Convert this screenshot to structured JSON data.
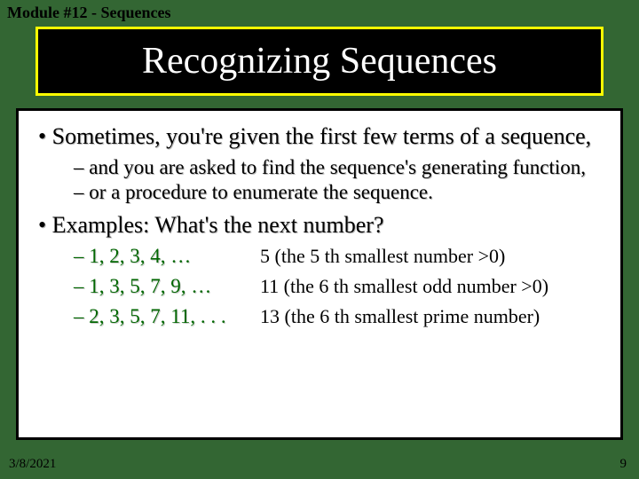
{
  "module_header": "Module #12 - Sequences",
  "title": "Recognizing Sequences",
  "bullets": {
    "main1": "• Sometimes, you're given the first few terms of a sequence,",
    "sub1": "– and you are asked to find the sequence's generating function,",
    "sub2": "– or a procedure to enumerate the sequence.",
    "main2": "• Examples: What's the next number?"
  },
  "examples": [
    {
      "seq": "– 1, 2, 3, 4, …",
      "ans": "5 (the 5 th smallest number >0)"
    },
    {
      "seq": "– 1, 3, 5, 7, 9, …",
      "ans": "11 (the 6 th smallest odd number >0)"
    },
    {
      "seq": "– 2, 3, 5, 7, 11, . . .",
      "ans": "13 (the 6 th smallest prime number)"
    }
  ],
  "footer": {
    "date": "3/8/2021",
    "page": "9"
  },
  "colors": {
    "slide_bg": "#336633",
    "title_border": "#ffff00",
    "title_bg": "#000000",
    "title_text": "#ffffff",
    "content_bg": "#ffffff",
    "content_border": "#000000",
    "seq_color": "#006600"
  }
}
